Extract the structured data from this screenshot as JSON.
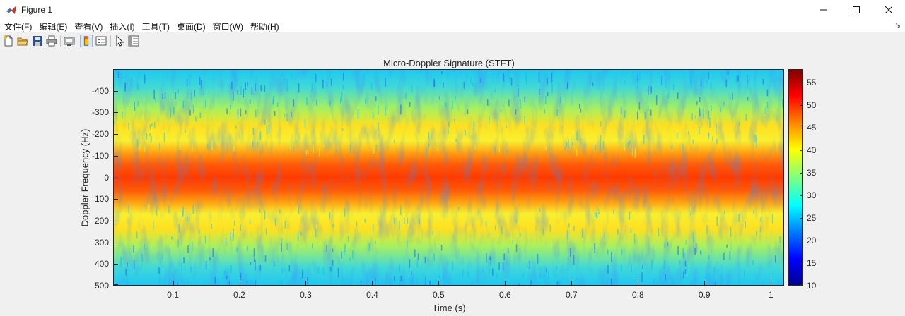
{
  "window": {
    "title": "Figure 1",
    "controls": [
      "minimize-icon",
      "maximize-icon",
      "close-icon"
    ]
  },
  "menubar": {
    "items": [
      "文件(F)",
      "编辑(E)",
      "查看(V)",
      "插入(I)",
      "工具(T)",
      "桌面(D)",
      "窗口(W)",
      "帮助(H)"
    ],
    "pin": "↘"
  },
  "toolbar": {
    "icons": [
      "new-figure-icon",
      "open-file-icon",
      "save-icon",
      "print-icon",
      "link-plot-icon",
      "colorbar-toggle-icon",
      "legend-toggle-icon",
      "pointer-edit-icon",
      "property-inspector-icon"
    ]
  },
  "chart_data": {
    "type": "heatmap",
    "title": "Micro-Doppler Signature (STFT)",
    "xlabel": "Time (s)",
    "ylabel": "Doppler Frequency (Hz)",
    "xlim": [
      0.01,
      1.02
    ],
    "ylim": [
      -500,
      500
    ],
    "y_direction": "reversed",
    "xticks": [
      "0.1",
      "0.2",
      "0.3",
      "0.4",
      "0.5",
      "0.6",
      "0.7",
      "0.8",
      "0.9",
      "1"
    ],
    "xtick_values": [
      0.1,
      0.2,
      0.3,
      0.4,
      0.5,
      0.6,
      0.7,
      0.8,
      0.9,
      1.0
    ],
    "yticks": [
      "-400",
      "-300",
      "-200",
      "-100",
      "0",
      "100",
      "200",
      "300",
      "400",
      "500"
    ],
    "ytick_values": [
      -400,
      -300,
      -200,
      -100,
      0,
      100,
      200,
      300,
      400,
      500
    ],
    "colormap": "jet",
    "clim": [
      10,
      58
    ],
    "colorbar_ticks": [
      "55",
      "50",
      "45",
      "40",
      "35",
      "30",
      "25",
      "20",
      "15",
      "10"
    ],
    "colorbar_tick_values": [
      55,
      50,
      45,
      40,
      35,
      30,
      25,
      20,
      15,
      10
    ],
    "description_levels": {
      "center_band_hz": [
        -70,
        70
      ],
      "center_level_db": 52,
      "sideband_hz": [
        150,
        250
      ],
      "sideband_level_db": 40,
      "background_level_db": 30
    }
  }
}
